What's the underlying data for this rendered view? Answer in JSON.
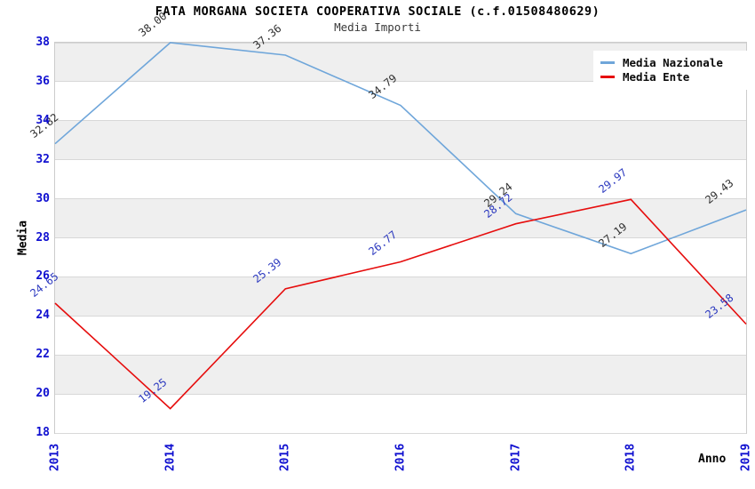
{
  "header": {
    "title": "FATA MORGANA SOCIETA COOPERATIVA SOCIALE (c.f.01508480629)",
    "subtitle": "Media Importi"
  },
  "axes": {
    "y_label": "Media",
    "x_label": "Anno",
    "tick_color": "#0f0fd0"
  },
  "legend": {
    "position": "top-right"
  },
  "colors": {
    "band": "#efefef",
    "grid": "#d8d8d8",
    "plot_border": "#cccccc",
    "background": "#ffffff"
  },
  "chart_data": {
    "type": "line",
    "title": "FATA MORGANA SOCIETA COOPERATIVA SOCIALE (c.f.01508480629)",
    "subtitle": "Media Importi",
    "xlabel": "Anno",
    "ylabel": "Media",
    "x": [
      "2013",
      "2014",
      "2015",
      "2016",
      "2017",
      "2018",
      "2019"
    ],
    "series": [
      {
        "name": "Media Nazionale",
        "color": "#6fa6da",
        "label_color": "#303030",
        "values": [
          32.82,
          38.0,
          37.36,
          34.79,
          29.24,
          27.19,
          29.43
        ]
      },
      {
        "name": "Media Ente",
        "color": "#e60d0d",
        "label_color": "#2b38bf",
        "values": [
          24.65,
          19.25,
          25.39,
          26.77,
          28.72,
          29.97,
          23.58
        ]
      }
    ],
    "ylim": [
      18,
      38
    ],
    "y_ticks": [
      18,
      20,
      22,
      24,
      26,
      28,
      30,
      32,
      34,
      36,
      38
    ],
    "grid": true,
    "banded_background": true,
    "legend_position": "top-right",
    "point_label_format": "2-decimals"
  }
}
